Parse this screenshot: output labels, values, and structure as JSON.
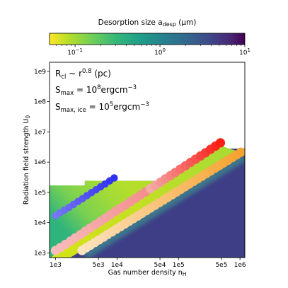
{
  "chart_data": {
    "type": "heatmap",
    "colorbar": {
      "label_main": "Desorption size a",
      "label_sub": "desp",
      "label_unit": " (μm)",
      "scale": "log",
      "range": [
        0.05,
        10
      ],
      "ticks": [
        {
          "value": 0.1,
          "base": "10",
          "exp": "−1"
        },
        {
          "value": 1,
          "base": "10",
          "exp": "0"
        },
        {
          "value": 10,
          "base": "10",
          "exp": "1"
        }
      ],
      "colormap": "viridis_r",
      "placement": "top"
    },
    "x_axis": {
      "label_main": "Gas number density n",
      "label_sub": "H",
      "scale": "log",
      "range": [
        800,
        1200000
      ],
      "ticks": [
        {
          "value": 1000,
          "label": "1e3"
        },
        {
          "value": 5000,
          "label": "5e3"
        },
        {
          "value": 10000,
          "label": "1e4"
        },
        {
          "value": 50000,
          "label": "5e4"
        },
        {
          "value": 100000,
          "label": "1e5"
        },
        {
          "value": 500000,
          "label": "5e5"
        },
        {
          "value": 1000000,
          "label": "1e6"
        }
      ]
    },
    "y_axis": {
      "label_main": "Radiation field strength U",
      "label_sub": "0",
      "scale": "log",
      "range": [
        700,
        2000000000
      ],
      "ticks": [
        {
          "value": 1000,
          "label": "1e3"
        },
        {
          "value": 10000,
          "label": "1e4"
        },
        {
          "value": 100000,
          "label": "1e5"
        },
        {
          "value": 1000000,
          "label": "1e6"
        },
        {
          "value": 10000000,
          "label": "1e7"
        },
        {
          "value": 100000000,
          "label": "1e8"
        },
        {
          "value": 1000000000,
          "label": "1e9"
        }
      ]
    },
    "annotations": [
      {
        "base": "R",
        "sub": "cl",
        "mid": " ~ r",
        "sup": "0.8",
        "tail": " (pc)"
      },
      {
        "base": "S",
        "sub": "max",
        "mid": " = 10",
        "sup": "8",
        "tail": "ergcm",
        "sup2": "−3"
      },
      {
        "base": "S",
        "sub": "max, ice",
        "mid": " = 10",
        "sup": "5",
        "tail": "ergcm",
        "sup2": "−3"
      }
    ],
    "region_upper_boundary": [
      [
        800,
        170000
      ],
      [
        3000,
        170000
      ],
      [
        3000,
        240000
      ],
      [
        80000,
        240000
      ],
      [
        80000,
        450000
      ],
      [
        300000,
        450000
      ],
      [
        300000,
        1100000
      ],
      [
        600000,
        1100000
      ],
      [
        600000,
        2800000
      ],
      [
        1200000,
        2800000
      ]
    ],
    "series": [
      {
        "color": "#4a52f0",
        "points": [
          [
            1000,
            17000
          ],
          [
            1180,
            21000
          ],
          [
            1400,
            26000
          ],
          [
            1660,
            32000
          ],
          [
            1960,
            40000
          ],
          [
            2320,
            50000
          ],
          [
            2750,
            62000
          ],
          [
            3250,
            78000
          ],
          [
            3850,
            98000
          ],
          [
            4560,
            122000
          ],
          [
            5400,
            152000
          ],
          [
            6400,
            190000
          ],
          [
            7600,
            240000
          ],
          [
            9000,
            300000
          ]
        ]
      },
      {
        "color": "#f66a6a",
        "points": [
          [
            1000,
            1200
          ],
          [
            1200,
            1500
          ],
          [
            1450,
            1900
          ],
          [
            1750,
            2450
          ],
          [
            2100,
            3150
          ],
          [
            2550,
            4000
          ],
          [
            3050,
            5200
          ],
          [
            3700,
            6700
          ],
          [
            4450,
            8600
          ],
          [
            5400,
            11000
          ],
          [
            6500,
            14200
          ],
          [
            7800,
            18200
          ],
          [
            9400,
            23500
          ],
          [
            11300,
            30000
          ],
          [
            13700,
            38000
          ],
          [
            16500,
            49000
          ],
          [
            19900,
            63000
          ],
          [
            24000,
            81000
          ],
          [
            29000,
            104000
          ],
          [
            35000,
            133000
          ],
          [
            42000,
            170000
          ],
          [
            51000,
            218000
          ],
          [
            61000,
            280000
          ],
          [
            74000,
            360000
          ],
          [
            89000,
            460000
          ],
          [
            107000,
            590000
          ],
          [
            130000,
            760000
          ],
          [
            157000,
            980000
          ],
          [
            189000,
            1250000
          ],
          [
            228000,
            1600000
          ],
          [
            275000,
            2050000
          ],
          [
            332000,
            2650000
          ],
          [
            400000,
            3400000
          ],
          [
            480000,
            4350000
          ]
        ]
      },
      {
        "color": "#f8b640",
        "points": [
          [
            2700,
            1200
          ],
          [
            3150,
            1470
          ],
          [
            3700,
            1800
          ],
          [
            4350,
            2200
          ],
          [
            5100,
            2700
          ],
          [
            6000,
            3300
          ],
          [
            7000,
            4050
          ],
          [
            8250,
            4950
          ],
          [
            9700,
            6050
          ],
          [
            11400,
            7400
          ],
          [
            13400,
            9050
          ],
          [
            15700,
            11100
          ],
          [
            18400,
            13600
          ],
          [
            21700,
            16600
          ],
          [
            25400,
            20300
          ],
          [
            29900,
            24900
          ],
          [
            35100,
            30400
          ],
          [
            41200,
            37200
          ],
          [
            48400,
            45500
          ],
          [
            56900,
            55700
          ],
          [
            66800,
            68200
          ],
          [
            78500,
            83500
          ],
          [
            92200,
            102000
          ],
          [
            108000,
            125000
          ],
          [
            127000,
            153000
          ],
          [
            149000,
            187000
          ],
          [
            175000,
            229000
          ],
          [
            206000,
            280000
          ],
          [
            242000,
            343000
          ],
          [
            284000,
            420000
          ],
          [
            334000,
            514000
          ],
          [
            392000,
            629000
          ],
          [
            460000,
            770000
          ],
          [
            541000,
            942000
          ],
          [
            635000,
            1150000
          ],
          [
            746000,
            1410000
          ],
          [
            876000,
            1730000
          ],
          [
            1030000,
            2110000
          ]
        ]
      }
    ]
  }
}
